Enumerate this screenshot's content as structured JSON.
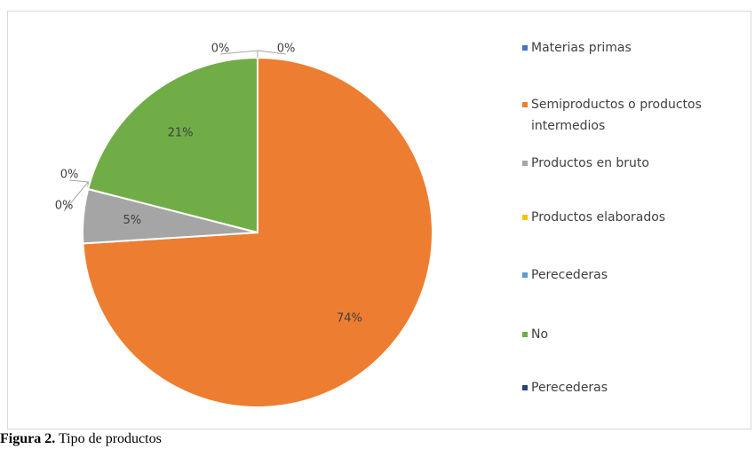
{
  "chart_data": {
    "type": "pie",
    "categories": [
      "Materias primas",
      "Semiproductos o productos intermedios",
      "Productos en bruto",
      "Productos elaborados",
      "Perecederas",
      "No",
      "Perecederas"
    ],
    "values": [
      0,
      74,
      5,
      0,
      0,
      21,
      0
    ],
    "value_labels": [
      "0%",
      "74%",
      "5%",
      "0%",
      "0%",
      "21%",
      "0%"
    ],
    "colors": [
      "#4472c4",
      "#ed7d31",
      "#a5a5a5",
      "#ffc000",
      "#5b9bd5",
      "#70ad47",
      "#264478"
    ],
    "legend": "right"
  },
  "caption": {
    "label": "Figura 2.",
    "text": "Tipo de productos"
  }
}
